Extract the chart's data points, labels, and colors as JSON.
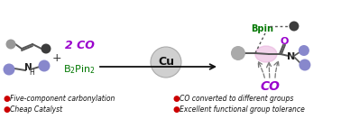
{
  "bg_color": "#ffffff",
  "catalyst_circle_color": "#d0d0d0",
  "catalyst_text": "Cu",
  "co_label_color": "#9900cc",
  "co_label": "2 CO",
  "b2pin2_color": "#007700",
  "bpin_color": "#007700",
  "bpin_label": "Bpin",
  "co_product_color": "#9900cc",
  "co_product_label": "CO",
  "alkene_dark_gray": "#3c3c3c",
  "alkene_light_gray": "#999999",
  "amine_blue": "#8888cc",
  "carbonyl_o_color": "#9900cc",
  "product_pink": "#e8b0dc",
  "bullet_color": "#cc0000",
  "bullet_char": "●",
  "bottom_texts": [
    "Five-component carbonylation",
    "Cheap Catalyst",
    "CO converted to different groups",
    "Excellent functional group tolerance"
  ],
  "n_label": "N",
  "o_label": "O"
}
